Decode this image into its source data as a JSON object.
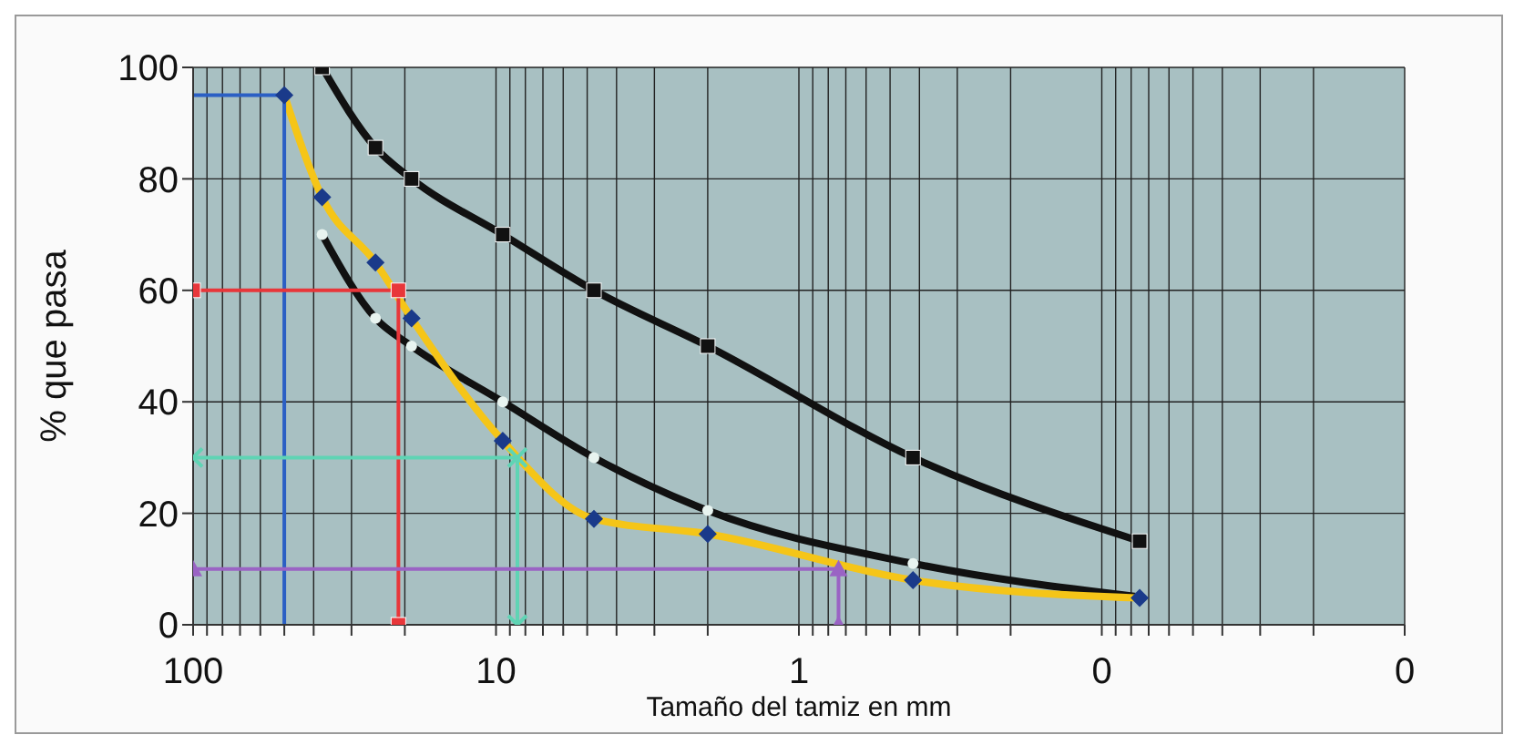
{
  "chart_data": {
    "type": "line",
    "xlabel": "Tamaño del tamiz en mm",
    "ylabel": "% que pasa",
    "log": "x",
    "xlim": [
      100,
      0.01
    ],
    "xticks": [
      100,
      {
        "value": 90,
        "label": null
      },
      {
        "value": 80,
        "label": null
      },
      {
        "value": 70,
        "label": null
      },
      {
        "value": 60,
        "label": null
      },
      {
        "value": 50,
        "label": null
      },
      {
        "value": 40,
        "label": null
      },
      {
        "value": 30,
        "label": null
      },
      {
        "value": 20,
        "label": null
      },
      10,
      {
        "value": 9,
        "label": null
      },
      {
        "value": 8,
        "label": null
      },
      {
        "value": 7,
        "label": null
      },
      {
        "value": 6,
        "label": null
      },
      {
        "value": 5,
        "label": null
      },
      {
        "value": 4,
        "label": null
      },
      {
        "value": 3,
        "label": null
      },
      {
        "value": 2,
        "label": null
      },
      1,
      {
        "value": 0.9,
        "label": null
      },
      {
        "value": 0.8,
        "label": null
      },
      {
        "value": 0.7,
        "label": null
      },
      {
        "value": 0.6,
        "label": null
      },
      {
        "value": 0.5,
        "label": null
      },
      {
        "value": 0.4,
        "label": null
      },
      {
        "value": 0.3,
        "label": null
      },
      {
        "value": 0.2,
        "label": null
      },
      {
        "value": 0.1,
        "label": "0"
      },
      {
        "value": 0.09,
        "label": null
      },
      {
        "value": 0.08,
        "label": null
      },
      {
        "value": 0.07,
        "label": null
      },
      {
        "value": 0.06,
        "label": null
      },
      {
        "value": 0.05,
        "label": null
      },
      {
        "value": 0.04,
        "label": null
      },
      {
        "value": 0.03,
        "label": null
      },
      {
        "value": 0.02,
        "label": null
      },
      {
        "value": 0.01,
        "label": "0"
      }
    ],
    "ylim": [
      0,
      100
    ],
    "yticks": [
      0,
      20,
      40,
      60,
      80,
      100
    ],
    "grid": true,
    "line_style": "solid",
    "series": [
      {
        "color": "#111111",
        "marker": "square",
        "x": [
          37.5,
          25,
          19,
          9.5,
          4.75,
          2.0,
          0.42,
          0.075
        ],
        "values": [
          100,
          85.6,
          80,
          70,
          60,
          50,
          30,
          15
        ]
      },
      {
        "color": "#111111",
        "marker": "circle",
        "x": [
          37.5,
          25,
          19,
          9.5,
          4.75,
          2.0,
          0.42,
          0.075
        ],
        "values": [
          70,
          55,
          50,
          40,
          30,
          20.5,
          11,
          5
        ]
      },
      {
        "color": "#f5c518",
        "marker": "diamond",
        "x": [
          50,
          37.5,
          25,
          19,
          9.5,
          4.75,
          2.0,
          0.42,
          0.075
        ],
        "values": [
          95,
          76.7,
          65,
          55,
          33,
          19,
          16.3,
          8,
          4.8
        ]
      },
      {
        "color": "#2b5fc4",
        "marker": "none",
        "x": [
          100,
          50,
          50
        ],
        "values": [
          95,
          95,
          0
        ]
      },
      {
        "color": "#e8363a",
        "marker": "square",
        "x": [
          100,
          21,
          21
        ],
        "values": [
          60,
          60,
          0
        ]
      },
      {
        "color": "#5fd4b4",
        "marker": "cross",
        "x": [
          100,
          8.5,
          8.5
        ],
        "values": [
          30,
          30,
          0
        ]
      },
      {
        "color": "#9a63c4",
        "marker": "triangle",
        "x": [
          100,
          0.74,
          0.74
        ],
        "values": [
          10,
          10,
          0
        ]
      }
    ]
  }
}
